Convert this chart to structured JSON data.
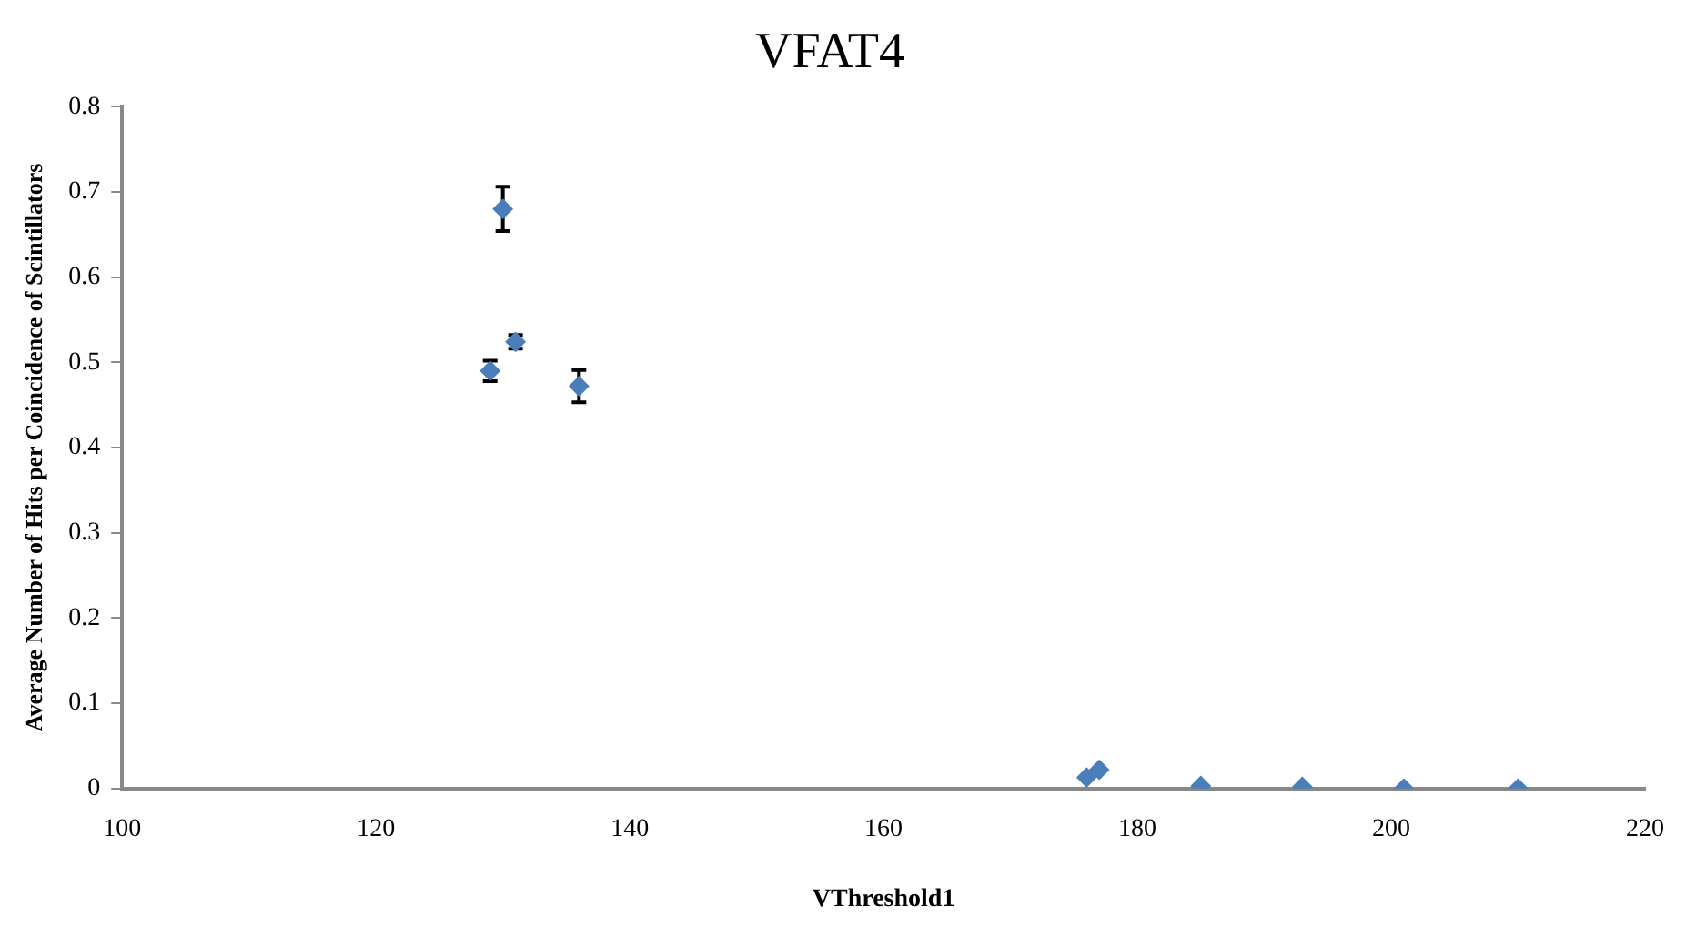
{
  "chart_data": {
    "type": "scatter",
    "title": "VFAT4",
    "xlabel": "VThreshold1",
    "ylabel": "Average Number of Hits per Coincidence of Scintillators",
    "x": [
      129,
      130,
      131,
      136,
      176,
      177,
      185,
      193,
      201,
      210
    ],
    "series": [
      {
        "color": "#4a7ebb",
        "values": [
          0.49,
          0.68,
          0.524,
          0.472,
          0.013,
          0.022,
          0.003,
          0.002,
          0,
          0
        ],
        "errors": [
          0.012,
          0.026,
          0.008,
          0.019,
          null,
          null,
          null,
          null,
          null,
          null
        ]
      }
    ],
    "xlim": [
      100,
      220
    ],
    "xticks": [
      100,
      120,
      140,
      160,
      180,
      200,
      220
    ],
    "ylim": [
      0,
      0.8
    ],
    "yticks": [
      0,
      0.1,
      0.2,
      0.3,
      0.4,
      0.5,
      0.6,
      0.7,
      0.8
    ],
    "grid": false,
    "legend": false,
    "marker": "diamond"
  }
}
